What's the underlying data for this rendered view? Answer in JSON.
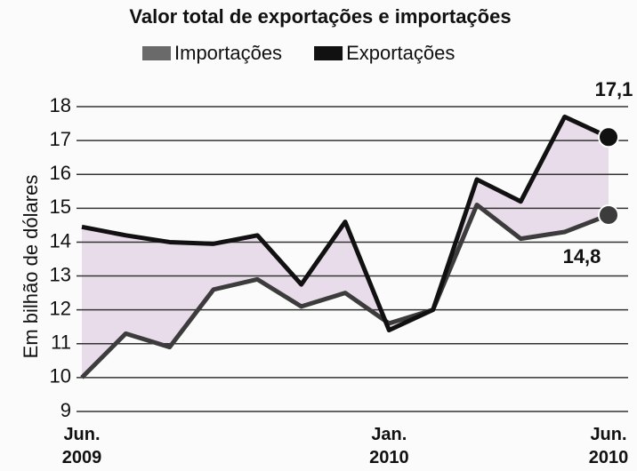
{
  "chart_data": {
    "type": "line",
    "title": "Valor total de exportações e importações",
    "ylabel": "Em bilhão de dólares",
    "categories": [
      "Jun. 2009",
      null,
      null,
      null,
      null,
      null,
      null,
      "Jan. 2010",
      null,
      null,
      null,
      null,
      "Jun. 2010"
    ],
    "series": [
      {
        "name": "Importações",
        "color": "#3c3c3c",
        "legend_color": "#6a6a6a",
        "values": [
          10.0,
          11.3,
          10.9,
          12.6,
          12.9,
          12.1,
          12.5,
          11.6,
          12.0,
          15.1,
          14.1,
          14.3,
          14.8
        ],
        "value_labels": [
          null,
          null,
          null,
          null,
          null,
          null,
          null,
          null,
          null,
          null,
          null,
          null,
          "14,8"
        ]
      },
      {
        "name": "Exportações",
        "color": "#111111",
        "legend_color": "#111111",
        "values": [
          14.45,
          14.2,
          14.0,
          13.95,
          14.2,
          12.75,
          14.6,
          11.4,
          12.0,
          15.85,
          15.2,
          17.7,
          17.1
        ],
        "value_labels": [
          null,
          null,
          null,
          null,
          null,
          null,
          null,
          null,
          null,
          null,
          null,
          null,
          "17,1"
        ]
      }
    ],
    "fill_between": "#e9dcea",
    "ylim": [
      9,
      18
    ],
    "yticks": [
      9,
      10,
      11,
      12,
      13,
      14,
      15,
      16,
      17,
      18
    ],
    "grid": true
  }
}
